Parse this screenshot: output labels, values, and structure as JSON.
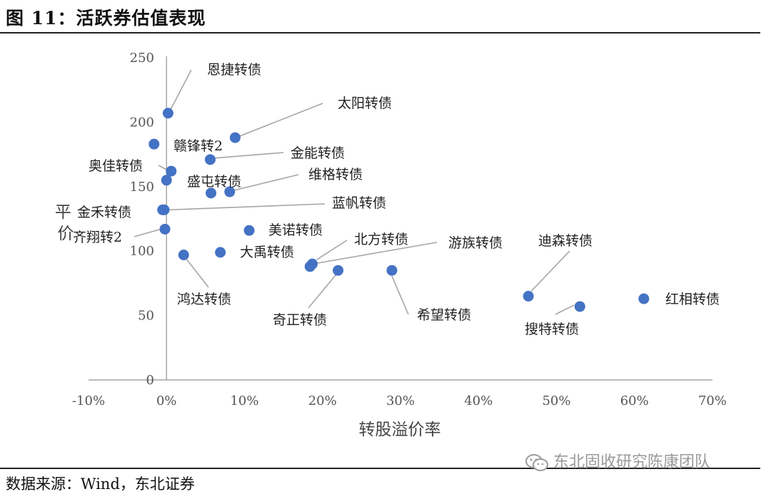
{
  "figure": {
    "title": "图 11：活跃券估值表现",
    "source": "数据来源：Wind，东北证券",
    "watermark": "东北固收研究陈康团队"
  },
  "colors": {
    "point": "#4472C4",
    "axis": "#a6a6a6",
    "leader": "#a6a6a6"
  },
  "chart_data": {
    "type": "scatter",
    "title": "活跃券估值表现",
    "xlabel": "转股溢价率",
    "ylabel": "平价",
    "xlim": [
      -10,
      70
    ],
    "ylim": [
      0,
      250
    ],
    "xticks": [
      -10,
      0,
      10,
      20,
      30,
      40,
      50,
      60,
      70
    ],
    "xtick_labels": [
      "-10%",
      "0%",
      "10%",
      "20%",
      "30%",
      "40%",
      "50%",
      "60%",
      "70%"
    ],
    "yticks": [
      0,
      50,
      100,
      150,
      200,
      250
    ],
    "ytick_labels": [
      "0",
      "50",
      "100",
      "150",
      "200",
      "250"
    ],
    "points": [
      {
        "name": "恩捷转债",
        "x": 0.2,
        "y": 207
      },
      {
        "name": "太阳转债",
        "x": 8.8,
        "y": 188
      },
      {
        "name": "赣锋转2",
        "x": -1.6,
        "y": 183
      },
      {
        "name": "金能转债",
        "x": 5.6,
        "y": 171
      },
      {
        "name": "奥佳转债",
        "x": 0.6,
        "y": 162
      },
      {
        "name": "维格转债",
        "x": 8.1,
        "y": 146
      },
      {
        "name": "盛屯转债",
        "x": 5.7,
        "y": 145
      },
      {
        "name": "未标注",
        "x": 0.0,
        "y": 155
      },
      {
        "name": "金禾转债",
        "x": -0.5,
        "y": 132
      },
      {
        "name": "蓝帆转债",
        "x": -0.3,
        "y": 132
      },
      {
        "name": "齐翔转2",
        "x": -0.2,
        "y": 117
      },
      {
        "name": "美诺转债",
        "x": 10.6,
        "y": 116
      },
      {
        "name": "大禹转债",
        "x": 6.9,
        "y": 99
      },
      {
        "name": "鸿达转债",
        "x": 2.2,
        "y": 97
      },
      {
        "name": "北方转债",
        "x": 18.7,
        "y": 90
      },
      {
        "name": "游族转债",
        "x": 18.4,
        "y": 88
      },
      {
        "name": "奇正转债",
        "x": 22.0,
        "y": 85
      },
      {
        "name": "希望转债",
        "x": 28.9,
        "y": 85
      },
      {
        "name": "迪森转债",
        "x": 46.4,
        "y": 65
      },
      {
        "name": "搜特转债",
        "x": 53.0,
        "y": 57
      },
      {
        "name": "红相转债",
        "x": 61.2,
        "y": 63
      }
    ]
  }
}
